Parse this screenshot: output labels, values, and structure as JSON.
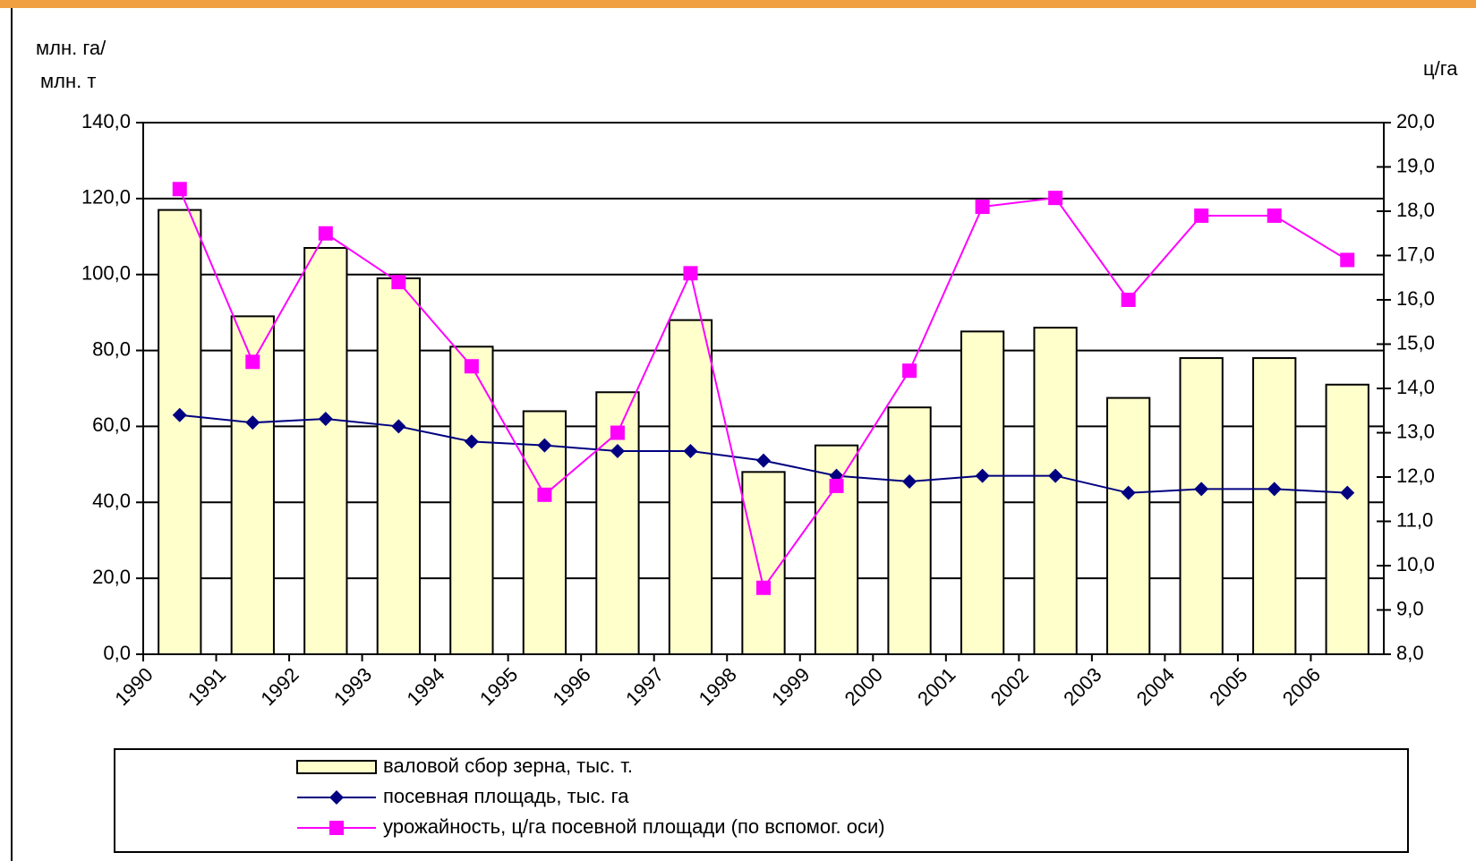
{
  "chart_data": {
    "type": "bar_line",
    "ylabel": "млн. га/",
    "ylabel2": "млн. т",
    "y2label": "ц/га",
    "categories": [
      "1990",
      "1991",
      "1992",
      "1993",
      "1994",
      "1995",
      "1996",
      "1997",
      "1998",
      "1999",
      "2000",
      "2001",
      "2002",
      "2003",
      "2004",
      "2005",
      "2006"
    ],
    "series": [
      {
        "name": "валовой сбор зерна, тыс. т.",
        "type": "bar",
        "color": "#ffffcc",
        "values": [
          117,
          89,
          107,
          99,
          81,
          64,
          69,
          88,
          48,
          55,
          65,
          85,
          86,
          67.5,
          78,
          78,
          71
        ]
      },
      {
        "name": "посевная площадь, тыс. га",
        "type": "line",
        "color": "#000080",
        "values": [
          63,
          61,
          62,
          60,
          56,
          55,
          53.5,
          53.5,
          51,
          47,
          45.5,
          47,
          47,
          42.5,
          43.5,
          43.5,
          42.5
        ]
      },
      {
        "name": "урожайность, ц/га посевной площади (по вспомог. оси)",
        "type": "line",
        "color": "#ff00ff",
        "axis": "y2",
        "values": [
          18.5,
          14.6,
          17.5,
          16.4,
          14.5,
          11.6,
          13.0,
          16.6,
          9.5,
          11.8,
          14.4,
          18.1,
          18.3,
          16.0,
          17.9,
          17.9,
          16.9
        ]
      }
    ],
    "ylim": [
      0,
      140
    ],
    "yticks": [
      {
        "value": 0,
        "label": "0,0"
      },
      {
        "value": 20,
        "label": "20,0"
      },
      {
        "value": 40,
        "label": "40,0"
      },
      {
        "value": 60,
        "label": "60,0"
      },
      {
        "value": 80,
        "label": "80,0"
      },
      {
        "value": 100,
        "label": "100,0"
      },
      {
        "value": 120,
        "label": "120,0"
      },
      {
        "value": 140,
        "label": "140,0"
      }
    ],
    "y2lim": [
      8,
      20
    ],
    "y2ticks": [
      {
        "value": 8,
        "label": "8,0"
      },
      {
        "value": 9,
        "label": "9,0"
      },
      {
        "value": 10,
        "label": "10,0"
      },
      {
        "value": 11,
        "label": "11,0"
      },
      {
        "value": 12,
        "label": "12,0"
      },
      {
        "value": 13,
        "label": "13,0"
      },
      {
        "value": 14,
        "label": "14,0"
      },
      {
        "value": 15,
        "label": "15,0"
      },
      {
        "value": 16,
        "label": "16,0"
      },
      {
        "value": 17,
        "label": "17,0"
      },
      {
        "value": 18,
        "label": "18,0"
      },
      {
        "value": 19,
        "label": "19,0"
      },
      {
        "value": 20,
        "label": "20,0"
      }
    ],
    "grid": true,
    "legend": "bottom"
  }
}
